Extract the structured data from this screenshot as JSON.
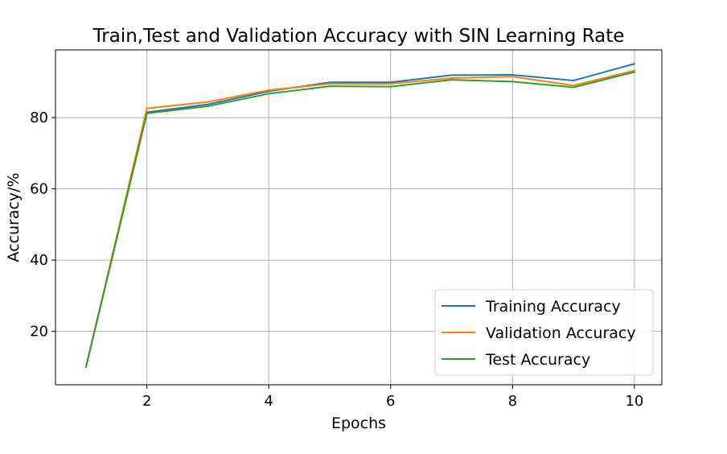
{
  "chart_data": {
    "type": "line",
    "title": "Train,Test and Validation Accuracy with SIN Learning Rate",
    "xlabel": "Epochs",
    "ylabel": "Accuracy/%",
    "x": [
      1,
      2,
      3,
      4,
      5,
      6,
      7,
      8,
      9,
      10
    ],
    "xlim": [
      0.5,
      10.45
    ],
    "ylim": [
      5.0,
      99.0
    ],
    "xticks": [
      2,
      4,
      6,
      8,
      10
    ],
    "yticks": [
      20,
      40,
      60,
      80
    ],
    "grid": true,
    "legend_position": "lower-right",
    "series": [
      {
        "name": "Training Accuracy",
        "color": "#1f77b4",
        "values": [
          10.0,
          81.5,
          83.7,
          87.4,
          89.9,
          89.9,
          91.9,
          92.0,
          90.4,
          95.1
        ]
      },
      {
        "name": "Validation Accuracy",
        "color": "#ff7f0e",
        "values": [
          10.0,
          82.6,
          84.4,
          87.7,
          89.5,
          89.5,
          91.1,
          91.5,
          89.0,
          93.2
        ]
      },
      {
        "name": "Test Accuracy",
        "color": "#2ca02c",
        "values": [
          10.0,
          81.2,
          83.2,
          86.7,
          88.8,
          88.7,
          90.6,
          90.1,
          88.5,
          92.8
        ]
      }
    ]
  }
}
